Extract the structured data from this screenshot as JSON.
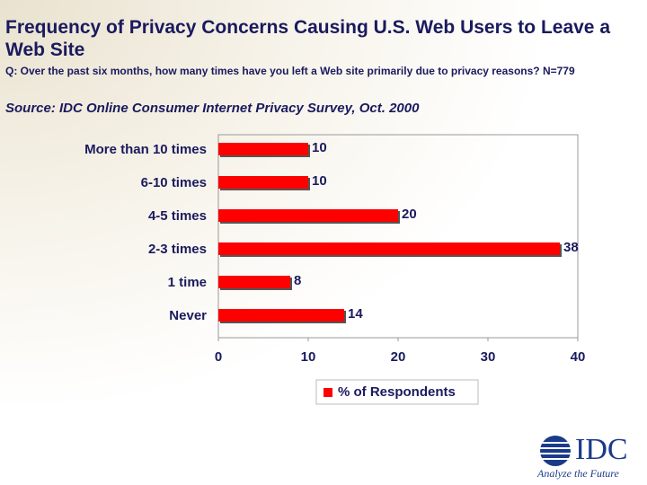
{
  "chart_data": {
    "type": "hbar",
    "title": "Frequency of Privacy Concerns Causing U.S. Web Users to Leave a Web Site",
    "subtitle": "Q: Over the past six months, how many times have you left a Web site primarily due to privacy reasons? N=779",
    "source": "Source: IDC Online Consumer Internet Privacy Survey, Oct. 2000",
    "categories": [
      "More than 10 times",
      "6-10 times",
      "4-5 times",
      "2-3 times",
      "1 time",
      "Never"
    ],
    "series": [
      {
        "name": "% of Respondents",
        "color": "#ff0000",
        "values": [
          10,
          10,
          20,
          38,
          8,
          14
        ]
      }
    ],
    "xlim": [
      0,
      40
    ],
    "xticks": [
      0,
      10,
      20,
      30,
      40
    ],
    "grid": false,
    "legend": "bottom"
  },
  "logo": {
    "name": "IDC",
    "tagline": "Analyze the Future"
  }
}
